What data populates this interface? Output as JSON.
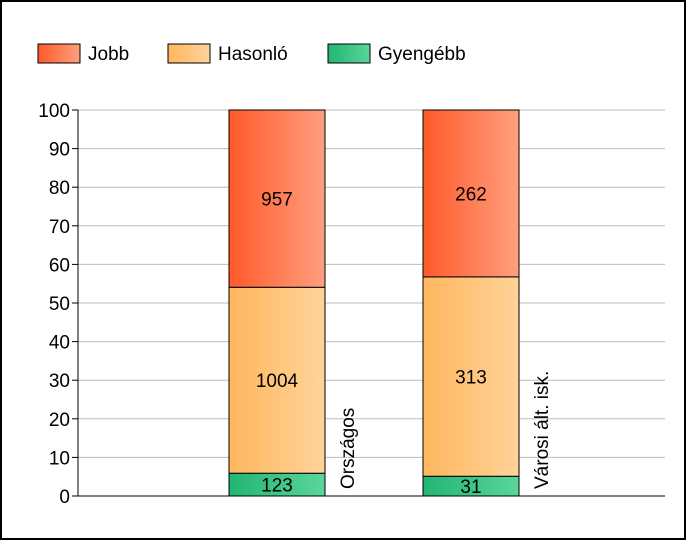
{
  "chart_data": {
    "type": "bar",
    "stacked": true,
    "normalized": true,
    "categories": [
      "Országos",
      "Városi ált. isk."
    ],
    "series": [
      {
        "name": "Gyengébb",
        "values": [
          123,
          31
        ],
        "color_start": "#22b573",
        "color_end": "#5ad69a"
      },
      {
        "name": "Hasonló",
        "values": [
          1004,
          313
        ],
        "color_start": "#ffb75e",
        "color_end": "#ffd39a"
      },
      {
        "name": "Jobb",
        "values": [
          957,
          262
        ],
        "color_start": "#ff5a2a",
        "color_end": "#ff9f7f"
      }
    ],
    "legend_order": [
      "Jobb",
      "Hasonló",
      "Gyengébb"
    ],
    "legend_position": "top-left",
    "ylim": [
      0,
      100
    ],
    "yticks": [
      "0",
      "10",
      "20",
      "30",
      "40",
      "50",
      "60",
      "70",
      "80",
      "90",
      "100"
    ],
    "grid": true,
    "title": "",
    "xlabel": "",
    "ylabel": ""
  }
}
